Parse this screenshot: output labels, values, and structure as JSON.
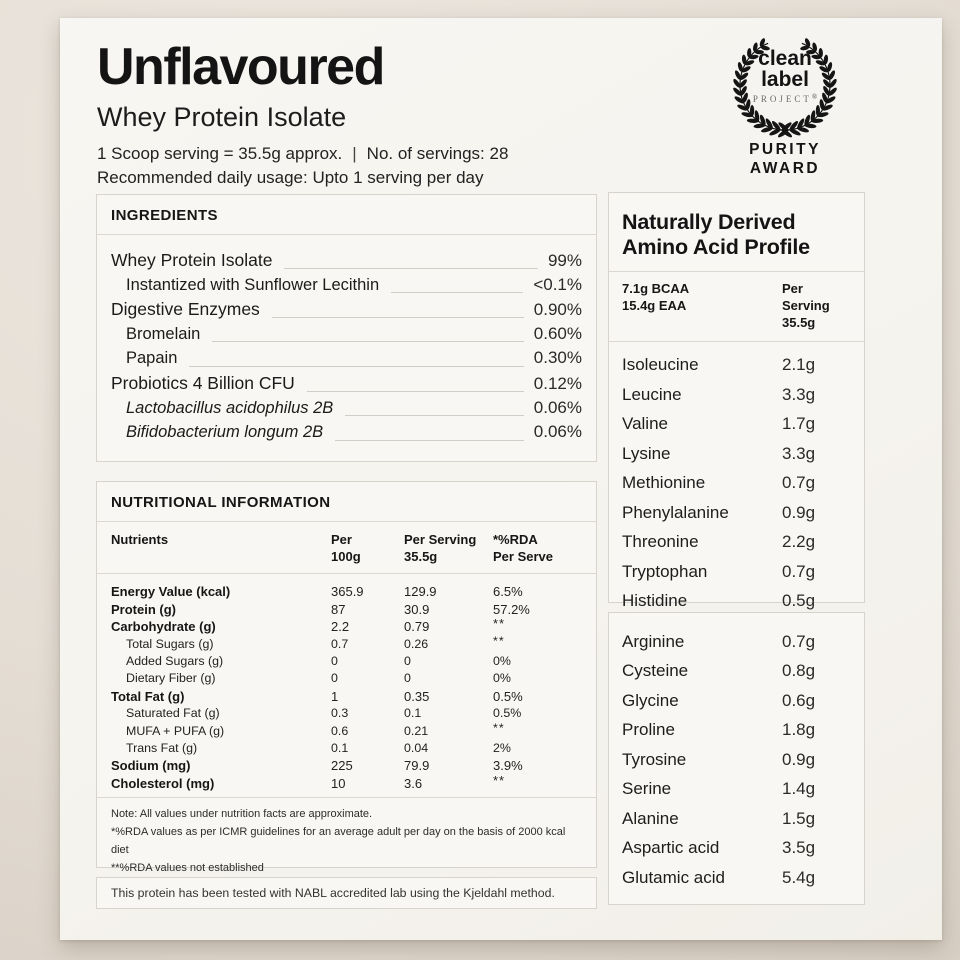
{
  "colors": {
    "ink": "#1a1a1a",
    "page_background": "#e5ded5",
    "sheet_background": "#f6f4f0",
    "box_border": "#d8d4cd",
    "leader_line": "#d2cec7"
  },
  "header": {
    "title": "Unflavoured",
    "subtitle": "Whey Protein Isolate",
    "serving_info": "1 Scoop serving = 35.5g approx.",
    "separator": "|",
    "servings_count": "No. of servings: 28",
    "usage": "Recommended daily usage: Upto 1 serving per day"
  },
  "badge": {
    "line1": "clean",
    "line2": "label",
    "line3": "PROJECT",
    "registered": "®",
    "award1": "PURITY",
    "award2": "AWARD",
    "wreath_icon": "laurel-wreath-icon"
  },
  "ingredients": {
    "title": "INGREDIENTS",
    "items": [
      {
        "name": "Whey Protein Isolate",
        "value": "99%",
        "level": 0,
        "italic": false
      },
      {
        "name": "Instantized with Sunflower Lecithin",
        "value": "<0.1%",
        "level": 1,
        "italic": false
      },
      {
        "name": "Digestive Enzymes",
        "value": "0.90%",
        "level": 0,
        "italic": false
      },
      {
        "name": "Bromelain",
        "value": "0.60%",
        "level": 1,
        "italic": false
      },
      {
        "name": "Papain",
        "value": "0.30%",
        "level": 1,
        "italic": false
      },
      {
        "name": "Probiotics 4 Billion CFU",
        "value": "0.12%",
        "level": 0,
        "italic": false
      },
      {
        "name": "Lactobacillus acidophilus 2B",
        "value": "0.06%",
        "level": 1,
        "italic": true
      },
      {
        "name": "Bifidobacterium longum 2B",
        "value": "0.06%",
        "level": 1,
        "italic": true
      }
    ]
  },
  "nutrition": {
    "title": "NUTRITIONAL INFORMATION",
    "columns": [
      {
        "l1": "Nutrients",
        "l2": ""
      },
      {
        "l1": "Per",
        "l2": "100g"
      },
      {
        "l1": "Per Serving",
        "l2": "35.5g"
      },
      {
        "l1": "*%RDA",
        "l2": "Per Serve"
      }
    ],
    "rows": [
      {
        "name": "Energy Value (kcal)",
        "per_100g": "365.9",
        "per_serving": "129.9",
        "rda": "6.5%",
        "bold": true
      },
      {
        "name": "Protein (g)",
        "per_100g": "87",
        "per_serving": "30.9",
        "rda": "57.2%",
        "bold": true
      },
      {
        "name": "Carbohydrate (g)",
        "per_100g": "2.2",
        "per_serving": "0.79",
        "rda": "**",
        "bold": true
      },
      {
        "name": "Total Sugars (g)",
        "per_100g": "0.7",
        "per_serving": "0.26",
        "rda": "**",
        "bold": false
      },
      {
        "name": "Added Sugars (g)",
        "per_100g": "0",
        "per_serving": "0",
        "rda": "0%",
        "bold": false
      },
      {
        "name": "Dietary Fiber (g)",
        "per_100g": "0",
        "per_serving": "0",
        "rda": "0%",
        "bold": false
      },
      {
        "name": "Total Fat (g)",
        "per_100g": "1",
        "per_serving": "0.35",
        "rda": "0.5%",
        "bold": true
      },
      {
        "name": "Saturated Fat (g)",
        "per_100g": "0.3",
        "per_serving": "0.1",
        "rda": "0.5%",
        "bold": false
      },
      {
        "name": "MUFA + PUFA (g)",
        "per_100g": "0.6",
        "per_serving": "0.21",
        "rda": "**",
        "bold": false
      },
      {
        "name": "Trans Fat (g)",
        "per_100g": "0.1",
        "per_serving": "0.04",
        "rda": "2%",
        "bold": false
      },
      {
        "name": "Sodium (mg)",
        "per_100g": "225",
        "per_serving": "79.9",
        "rda": "3.9%",
        "bold": true
      },
      {
        "name": "Cholesterol (mg)",
        "per_100g": "10",
        "per_serving": "3.6",
        "rda": "**",
        "bold": true
      }
    ],
    "notes": [
      "Note: All values under nutrition facts are approximate.",
      "*%RDA values as per ICMR guidelines for an average adult per day on the basis of 2000 kcal diet",
      "**%RDA values not established"
    ]
  },
  "lab_note": "This protein has been tested with NABL accredited lab using the Kjeldahl method.",
  "amino_profile": {
    "title_line1": "Naturally Derived",
    "title_line2": "Amino Acid Profile",
    "bcaa": "7.1g BCAA",
    "eaa": "15.4g EAA",
    "col_l1": "Per Serving",
    "col_l2": "35.5g",
    "essential": [
      {
        "name": "Isoleucine",
        "value": "2.1g"
      },
      {
        "name": "Leucine",
        "value": "3.3g"
      },
      {
        "name": "Valine",
        "value": "1.7g"
      },
      {
        "name": "Lysine",
        "value": "3.3g"
      },
      {
        "name": "Methionine",
        "value": "0.7g"
      },
      {
        "name": "Phenylalanine",
        "value": "0.9g"
      },
      {
        "name": "Threonine",
        "value": "2.2g"
      },
      {
        "name": "Tryptophan",
        "value": "0.7g"
      },
      {
        "name": "Histidine",
        "value": "0.5g"
      }
    ],
    "conditional": [
      {
        "name": "Arginine",
        "value": "0.7g"
      },
      {
        "name": "Cysteine",
        "value": "0.8g"
      },
      {
        "name": "Glycine",
        "value": "0.6g"
      },
      {
        "name": "Proline",
        "value": "1.8g"
      },
      {
        "name": "Tyrosine",
        "value": "0.9g"
      },
      {
        "name": "Serine",
        "value": "1.4g"
      },
      {
        "name": "Alanine",
        "value": "1.5g"
      },
      {
        "name": "Aspartic acid",
        "value": "3.5g"
      },
      {
        "name": "Glutamic acid",
        "value": "5.4g"
      }
    ]
  }
}
